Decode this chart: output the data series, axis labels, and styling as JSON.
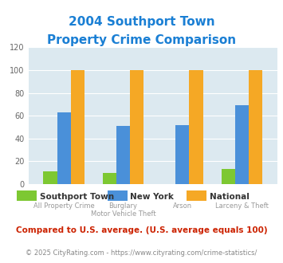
{
  "title": "2004 Southport Town\nProperty Crime Comparison",
  "title_color": "#1a7fd4",
  "southport": [
    11,
    10,
    0,
    13
  ],
  "newyork": [
    63,
    51,
    52,
    69
  ],
  "national": [
    100,
    100,
    100,
    100
  ],
  "southport_color": "#7dc832",
  "newyork_color": "#4a90d9",
  "national_color": "#f5a825",
  "ylim": [
    0,
    120
  ],
  "yticks": [
    0,
    20,
    40,
    60,
    80,
    100,
    120
  ],
  "legend_labels": [
    "Southport Town",
    "New York",
    "National"
  ],
  "xlabel_group": [
    "All Property Crime",
    "Burglary",
    "Arson",
    "Larceny & Theft"
  ],
  "xlabel_sub": [
    "",
    "Motor Vehicle Theft",
    "",
    ""
  ],
  "footnote1": "Compared to U.S. average. (U.S. average equals 100)",
  "footnote2": "© 2025 CityRating.com - https://www.cityrating.com/crime-statistics/",
  "footnote1_color": "#cc2200",
  "footnote2_color": "#888888",
  "plot_bg_color": "#dce9f0",
  "bar_width": 0.23
}
